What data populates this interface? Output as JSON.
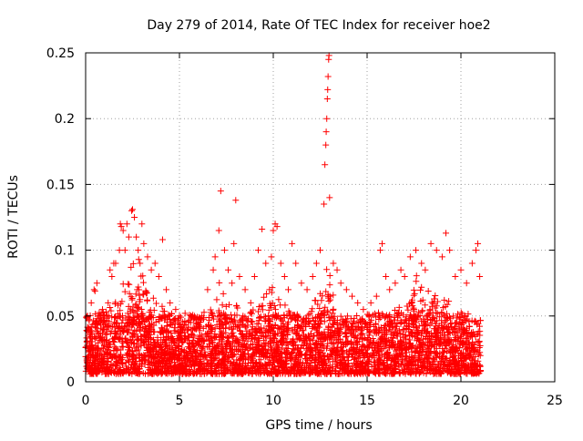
{
  "chart_data": {
    "type": "scatter",
    "title": "Day 279 of 2014, Rate Of TEC Index for receiver hoe2",
    "xlabel": "GPS time / hours",
    "ylabel": "ROTI / TECUs",
    "xlim": [
      0,
      25
    ],
    "ylim": [
      0,
      0.25
    ],
    "x_ticks": [
      "0",
      "5",
      "10",
      "15",
      "20",
      "25"
    ],
    "y_ticks": [
      "0",
      "0.05",
      "0.1",
      "0.15",
      "0.2",
      "0.25"
    ],
    "grid": true,
    "marker": "+",
    "color": "#ff0000",
    "series": [
      {
        "points": [
          [
            0.1,
            0.05
          ],
          [
            0.2,
            0.04
          ],
          [
            0.3,
            0.06
          ],
          [
            0.45,
            0.07
          ],
          [
            0.5,
            0.069
          ],
          [
            0.6,
            0.075
          ],
          [
            0.7,
            0.05
          ],
          [
            0.9,
            0.055
          ],
          [
            1.2,
            0.06
          ],
          [
            1.3,
            0.085
          ],
          [
            1.4,
            0.08
          ],
          [
            1.5,
            0.09
          ],
          [
            1.6,
            0.09
          ],
          [
            1.8,
            0.1
          ],
          [
            1.85,
            0.12
          ],
          [
            1.9,
            0.118
          ],
          [
            2.0,
            0.115
          ],
          [
            2.1,
            0.1
          ],
          [
            2.2,
            0.12
          ],
          [
            2.3,
            0.11
          ],
          [
            2.45,
            0.13
          ],
          [
            2.5,
            0.131
          ],
          [
            2.6,
            0.125
          ],
          [
            2.7,
            0.11
          ],
          [
            2.8,
            0.1
          ],
          [
            2.9,
            0.09
          ],
          [
            3.0,
            0.12
          ],
          [
            3.1,
            0.105
          ],
          [
            3.3,
            0.095
          ],
          [
            3.5,
            0.085
          ],
          [
            3.7,
            0.09
          ],
          [
            3.9,
            0.08
          ],
          [
            4.1,
            0.108
          ],
          [
            4.3,
            0.07
          ],
          [
            4.5,
            0.06
          ],
          [
            4.8,
            0.055
          ],
          [
            5.0,
            0.05
          ],
          [
            5.3,
            0.052
          ],
          [
            5.6,
            0.045
          ],
          [
            5.9,
            0.04
          ],
          [
            6.2,
            0.05
          ],
          [
            6.5,
            0.07
          ],
          [
            6.8,
            0.085
          ],
          [
            6.9,
            0.095
          ],
          [
            7.1,
            0.115
          ],
          [
            7.2,
            0.145
          ],
          [
            7.4,
            0.1
          ],
          [
            7.6,
            0.085
          ],
          [
            7.8,
            0.075
          ],
          [
            7.9,
            0.105
          ],
          [
            8.0,
            0.138
          ],
          [
            8.2,
            0.08
          ],
          [
            8.5,
            0.07
          ],
          [
            8.8,
            0.06
          ],
          [
            9.0,
            0.08
          ],
          [
            9.2,
            0.1
          ],
          [
            9.4,
            0.116
          ],
          [
            9.6,
            0.09
          ],
          [
            9.8,
            0.07
          ],
          [
            9.9,
            0.095
          ],
          [
            10.0,
            0.115
          ],
          [
            10.1,
            0.12
          ],
          [
            10.2,
            0.118
          ],
          [
            10.4,
            0.09
          ],
          [
            10.6,
            0.08
          ],
          [
            10.8,
            0.07
          ],
          [
            11.0,
            0.105
          ],
          [
            11.2,
            0.09
          ],
          [
            11.5,
            0.075
          ],
          [
            11.8,
            0.07
          ],
          [
            12.1,
            0.08
          ],
          [
            12.3,
            0.09
          ],
          [
            12.5,
            0.1
          ],
          [
            12.7,
            0.135
          ],
          [
            12.75,
            0.165
          ],
          [
            12.8,
            0.18
          ],
          [
            12.82,
            0.19
          ],
          [
            12.85,
            0.2
          ],
          [
            12.88,
            0.215
          ],
          [
            12.9,
            0.222
          ],
          [
            12.92,
            0.232
          ],
          [
            12.95,
            0.245
          ],
          [
            12.97,
            0.248
          ],
          [
            13.0,
            0.14
          ],
          [
            13.2,
            0.09
          ],
          [
            13.4,
            0.085
          ],
          [
            13.6,
            0.075
          ],
          [
            13.9,
            0.07
          ],
          [
            14.2,
            0.065
          ],
          [
            14.5,
            0.06
          ],
          [
            14.8,
            0.055
          ],
          [
            15.2,
            0.06
          ],
          [
            15.5,
            0.065
          ],
          [
            15.7,
            0.1
          ],
          [
            15.8,
            0.105
          ],
          [
            16.0,
            0.08
          ],
          [
            16.2,
            0.07
          ],
          [
            16.5,
            0.075
          ],
          [
            16.8,
            0.085
          ],
          [
            17.0,
            0.08
          ],
          [
            17.3,
            0.095
          ],
          [
            17.6,
            0.1
          ],
          [
            17.9,
            0.09
          ],
          [
            18.1,
            0.085
          ],
          [
            18.4,
            0.105
          ],
          [
            18.7,
            0.1
          ],
          [
            19.0,
            0.095
          ],
          [
            19.2,
            0.113
          ],
          [
            19.4,
            0.1
          ],
          [
            19.7,
            0.08
          ],
          [
            20.0,
            0.085
          ],
          [
            20.3,
            0.075
          ],
          [
            20.6,
            0.09
          ],
          [
            20.8,
            0.1
          ],
          [
            20.9,
            0.105
          ],
          [
            21.0,
            0.08
          ]
        ]
      }
    ]
  }
}
